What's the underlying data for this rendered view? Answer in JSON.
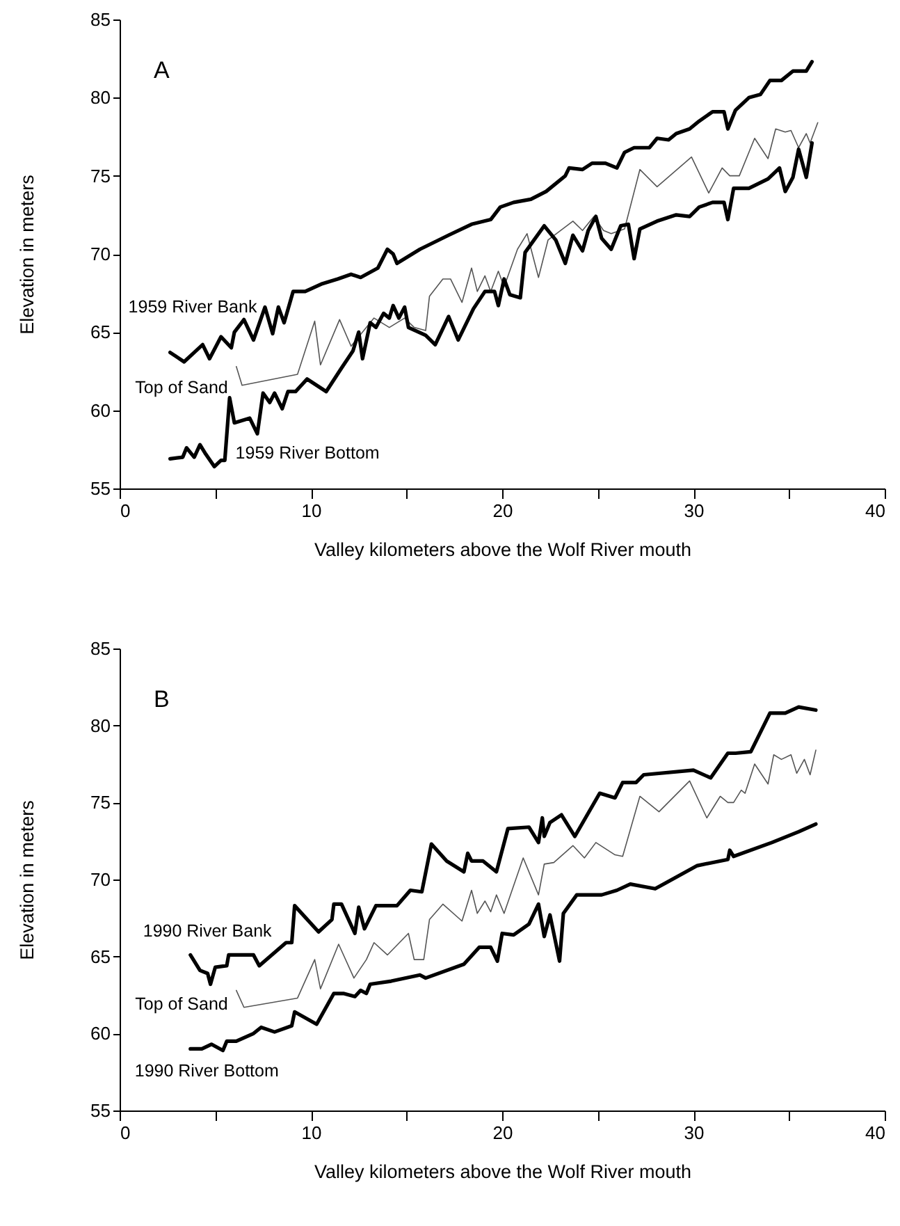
{
  "chart_data": [
    {
      "type": "line",
      "title": "A",
      "xlabel": "Valley kilometers above the Wolf River mouth",
      "ylabel": "Elevation in meters",
      "xlim": [
        0,
        40
      ],
      "xticks": [
        0,
        {
          "value": 5,
          "label": null
        },
        10,
        {
          "value": 15,
          "label": null
        },
        20,
        {
          "value": 25,
          "label": null
        },
        30,
        {
          "value": 35,
          "label": null
        },
        40
      ],
      "ylim": [
        55,
        85
      ],
      "yticks": [
        55,
        60,
        65,
        70,
        75,
        80,
        85
      ],
      "grid": false,
      "series": [
        {
          "name": "1959 River Bank",
          "color": "#000000",
          "x": [
            2.64,
            3.37,
            4.34,
            4.7,
            5.3,
            5.84,
            6.0,
            6.5,
            7.0,
            7.6,
            8.0,
            8.3,
            8.6,
            9.07,
            9.7,
            10.6,
            11.4,
            12.1,
            12.6,
            13.5,
            14.0,
            14.3,
            14.5,
            15.7,
            17.2,
            18.4,
            19.4,
            19.9,
            20.6,
            21.5,
            22.3,
            23.3,
            23.5,
            24.2,
            24.7,
            25.4,
            26.0,
            26.4,
            26.9,
            27.7,
            28.1,
            28.7,
            29.1,
            29.8,
            30.3,
            31.0,
            31.6,
            31.8,
            32.2,
            32.9,
            33.5,
            34.0,
            34.6,
            35.2,
            35.9,
            36.2
          ],
          "values": [
            63.7,
            63.1,
            64.2,
            63.3,
            64.7,
            64.0,
            65.0,
            65.8,
            64.5,
            66.6,
            64.9,
            66.6,
            65.6,
            67.6,
            67.6,
            68.1,
            68.4,
            68.7,
            68.5,
            69.1,
            70.3,
            70.0,
            69.4,
            70.3,
            71.2,
            71.9,
            72.2,
            73.0,
            73.3,
            73.5,
            74.0,
            75.0,
            75.5,
            75.4,
            75.8,
            75.8,
            75.5,
            76.5,
            76.8,
            76.8,
            77.4,
            77.3,
            77.7,
            78.0,
            78.5,
            79.1,
            79.1,
            78.0,
            79.2,
            80.0,
            80.2,
            81.1,
            81.1,
            81.7,
            81.7,
            82.3
          ]
        },
        {
          "name": "Top of Sand",
          "color": "#555555",
          "x": [
            6.1,
            6.4,
            9.3,
            10.2,
            10.5,
            11.5,
            12.1,
            13.3,
            14.1,
            14.9,
            15.4,
            16.0,
            16.2,
            16.9,
            17.3,
            17.9,
            18.4,
            18.7,
            19.1,
            19.4,
            19.8,
            20.1,
            20.8,
            21.3,
            21.9,
            22.4,
            23.7,
            24.2,
            24.8,
            25.3,
            25.7,
            26.4,
            27.2,
            28.1,
            29.9,
            30.8,
            31.5,
            31.9,
            32.4,
            33.2,
            33.9,
            34.3,
            34.8,
            35.1,
            35.5,
            35.9,
            36.1,
            36.5
          ],
          "values": [
            62.8,
            61.6,
            62.3,
            65.7,
            62.9,
            65.8,
            64.1,
            65.9,
            65.3,
            65.9,
            65.3,
            65.1,
            67.3,
            68.4,
            68.4,
            66.9,
            69.1,
            67.6,
            68.6,
            67.6,
            68.9,
            67.9,
            70.3,
            71.3,
            68.5,
            70.9,
            72.1,
            71.5,
            72.4,
            71.5,
            71.3,
            71.6,
            75.4,
            74.3,
            76.2,
            73.9,
            75.5,
            75.0,
            75.0,
            77.4,
            76.1,
            78.0,
            77.8,
            77.9,
            76.8,
            77.7,
            77.1,
            78.4
          ]
        },
        {
          "name": "1959 River Bottom",
          "color": "#000000",
          "x": [
            2.64,
            3.3,
            3.5,
            3.9,
            4.2,
            4.5,
            4.95,
            5.3,
            5.5,
            5.75,
            6.0,
            6.8,
            7.2,
            7.5,
            7.85,
            8.1,
            8.5,
            8.8,
            9.2,
            9.8,
            10.8,
            11.6,
            12.2,
            12.5,
            12.7,
            13.1,
            13.4,
            13.8,
            14.1,
            14.3,
            14.6,
            14.9,
            15.1,
            16.0,
            16.5,
            17.2,
            17.7,
            18.5,
            19.1,
            19.6,
            19.8,
            20.1,
            20.4,
            20.95,
            21.2,
            22.2,
            22.8,
            23.3,
            23.7,
            24.2,
            24.5,
            24.9,
            25.2,
            25.7,
            26.2,
            26.6,
            26.9,
            27.2,
            28.1,
            29.1,
            29.8,
            30.3,
            31.0,
            31.6,
            31.8,
            32.1,
            32.9,
            33.9,
            34.5,
            34.8,
            35.2,
            35.5,
            35.9,
            36.2
          ],
          "values": [
            56.9,
            57.0,
            57.6,
            57.0,
            57.8,
            57.2,
            56.4,
            56.8,
            56.8,
            60.8,
            59.2,
            59.5,
            58.5,
            61.1,
            60.5,
            61.1,
            60.1,
            61.2,
            61.2,
            62.0,
            61.2,
            62.7,
            63.8,
            65.0,
            63.3,
            65.6,
            65.3,
            66.2,
            65.9,
            66.7,
            65.9,
            66.6,
            65.3,
            64.8,
            64.2,
            66.0,
            64.5,
            66.5,
            67.6,
            67.6,
            66.7,
            68.4,
            67.4,
            67.2,
            70.1,
            71.8,
            70.9,
            69.4,
            71.2,
            70.2,
            71.5,
            72.4,
            71.0,
            70.3,
            71.8,
            71.9,
            69.7,
            71.6,
            72.1,
            72.5,
            72.4,
            73.0,
            73.3,
            73.3,
            72.2,
            74.2,
            74.2,
            74.8,
            75.5,
            74.0,
            74.9,
            76.7,
            74.9,
            77.1
          ]
        }
      ]
    },
    {
      "type": "line",
      "title": "B",
      "xlabel": "Valley kilometers above the Wolf River mouth",
      "ylabel": "Elevation in meters",
      "xlim": [
        0,
        40
      ],
      "xticks": [
        0,
        {
          "value": 5,
          "label": null
        },
        10,
        {
          "value": 15,
          "label": null
        },
        20,
        {
          "value": 25,
          "label": null
        },
        30,
        {
          "value": 35,
          "label": null
        },
        40
      ],
      "ylim": [
        55,
        85
      ],
      "yticks": [
        55,
        60,
        65,
        70,
        75,
        80,
        85
      ],
      "grid": false,
      "series": [
        {
          "name": "1990 River Bank",
          "color": "#000000",
          "x": [
            3.7,
            4.2,
            4.6,
            4.75,
            5.0,
            5.6,
            5.7,
            7.0,
            7.3,
            8.7,
            9.0,
            9.15,
            10.4,
            11.1,
            11.2,
            11.6,
            12.3,
            12.5,
            12.8,
            13.4,
            14.5,
            15.2,
            15.8,
            16.3,
            17.1,
            18.0,
            18.2,
            18.4,
            19.0,
            19.7,
            20.3,
            21.4,
            21.9,
            22.1,
            22.2,
            22.5,
            23.1,
            23.8,
            25.1,
            25.9,
            26.3,
            27.0,
            27.4,
            30.0,
            30.9,
            31.8,
            32.2,
            33.0,
            34.0,
            34.8,
            35.5,
            36.4
          ],
          "values": [
            65.1,
            64.1,
            63.9,
            63.2,
            64.3,
            64.4,
            65.1,
            65.1,
            64.4,
            65.9,
            65.9,
            68.3,
            66.6,
            67.4,
            68.4,
            68.4,
            66.5,
            68.2,
            66.8,
            68.3,
            68.3,
            69.3,
            69.2,
            72.3,
            71.2,
            70.5,
            71.7,
            71.2,
            71.2,
            70.5,
            73.3,
            73.4,
            72.4,
            74.0,
            72.8,
            73.7,
            74.2,
            72.8,
            75.6,
            75.3,
            76.3,
            76.3,
            76.8,
            77.1,
            76.6,
            78.2,
            78.2,
            78.3,
            80.8,
            80.8,
            81.2,
            81.0
          ]
        },
        {
          "name": "Top of Sand",
          "color": "#555555",
          "x": [
            6.1,
            6.5,
            9.3,
            10.2,
            10.5,
            11.45,
            12.25,
            12.9,
            13.3,
            14.0,
            15.1,
            15.4,
            15.9,
            16.2,
            16.9,
            17.9,
            18.4,
            18.7,
            19.1,
            19.4,
            19.7,
            20.1,
            21.1,
            21.9,
            22.2,
            22.7,
            23.7,
            24.3,
            24.9,
            25.9,
            26.3,
            27.2,
            28.2,
            29.8,
            30.7,
            31.4,
            31.8,
            32.1,
            32.5,
            32.7,
            33.2,
            33.9,
            34.2,
            34.6,
            35.1,
            35.4,
            35.8,
            36.1,
            36.4
          ],
          "values": [
            62.8,
            61.7,
            62.3,
            64.8,
            62.9,
            65.8,
            63.6,
            64.8,
            65.9,
            65.1,
            66.5,
            64.8,
            64.8,
            67.4,
            68.4,
            67.3,
            69.3,
            67.8,
            68.6,
            67.9,
            69.0,
            67.8,
            71.4,
            69.0,
            71.0,
            71.1,
            72.2,
            71.4,
            72.4,
            71.6,
            71.5,
            75.4,
            74.4,
            76.4,
            74.0,
            75.4,
            75.0,
            75.0,
            75.8,
            75.6,
            77.5,
            76.2,
            78.1,
            77.8,
            78.1,
            76.9,
            77.8,
            76.8,
            78.4
          ]
        },
        {
          "name": "1990 River Bottom",
          "color": "#000000",
          "x": [
            3.7,
            4.3,
            4.8,
            5.4,
            5.6,
            6.1,
            7.0,
            7.4,
            8.1,
            9.0,
            9.15,
            10.3,
            11.2,
            11.7,
            12.3,
            12.6,
            12.9,
            13.1,
            14.2,
            15.7,
            16.0,
            18.0,
            18.8,
            19.4,
            19.75,
            20.0,
            20.6,
            21.4,
            21.9,
            22.2,
            22.5,
            23.0,
            23.2,
            23.9,
            25.2,
            26.0,
            26.7,
            28.0,
            30.2,
            31.8,
            31.9,
            32.1,
            34.1,
            35.5,
            36.4
          ],
          "values": [
            59.0,
            59.0,
            59.3,
            58.9,
            59.5,
            59.5,
            60.0,
            60.4,
            60.1,
            60.5,
            61.4,
            60.6,
            62.6,
            62.6,
            62.4,
            62.8,
            62.6,
            63.2,
            63.4,
            63.8,
            63.6,
            64.5,
            65.6,
            65.6,
            64.7,
            66.5,
            66.4,
            67.1,
            68.4,
            66.3,
            67.7,
            64.7,
            67.8,
            69.0,
            69.0,
            69.3,
            69.7,
            69.4,
            70.9,
            71.3,
            71.9,
            71.5,
            72.4,
            73.1,
            73.6
          ]
        }
      ]
    }
  ]
}
